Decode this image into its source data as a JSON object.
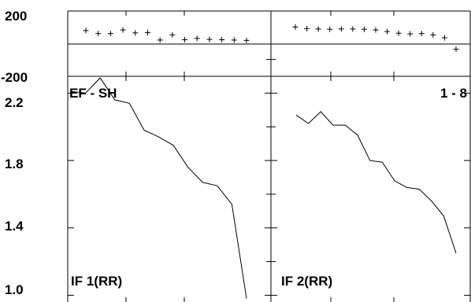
{
  "chart_data": {
    "type": "line",
    "panel_labels": {
      "top_left": "EF - SH",
      "top_right": "1 - 8",
      "bottom_left": "IF 1(RR)",
      "bottom_right": "IF 2(RR)"
    },
    "top_axis": {
      "ylim": [
        -200,
        200
      ],
      "tick_labels": [
        "200",
        "-200"
      ],
      "reference_line": 0
    },
    "bottom_axis": {
      "ylim": [
        0.96,
        2.3
      ],
      "ticks": [
        1.0,
        1.4,
        1.8,
        2.2
      ],
      "tick_labels": [
        "1.0",
        "1.4",
        "1.8",
        "2.2"
      ]
    },
    "residuals_left": [
      80,
      62,
      62,
      84,
      66,
      68,
      22,
      54,
      24,
      32,
      26,
      24,
      22,
      20
    ],
    "residuals_right": [
      102,
      92,
      90,
      88,
      90,
      90,
      88,
      84,
      74,
      64,
      60,
      62,
      54,
      36,
      -34
    ],
    "series_left": [
      2.21,
      2.2,
      2.29,
      2.16,
      2.14,
      1.98,
      1.94,
      1.89,
      1.76,
      1.67,
      1.65,
      1.54,
      0.98
    ],
    "series_right": [
      2.07,
      2.02,
      2.09,
      2.01,
      2.01,
      1.95,
      1.8,
      1.79,
      1.68,
      1.64,
      1.63,
      1.56,
      1.47,
      1.25
    ]
  }
}
